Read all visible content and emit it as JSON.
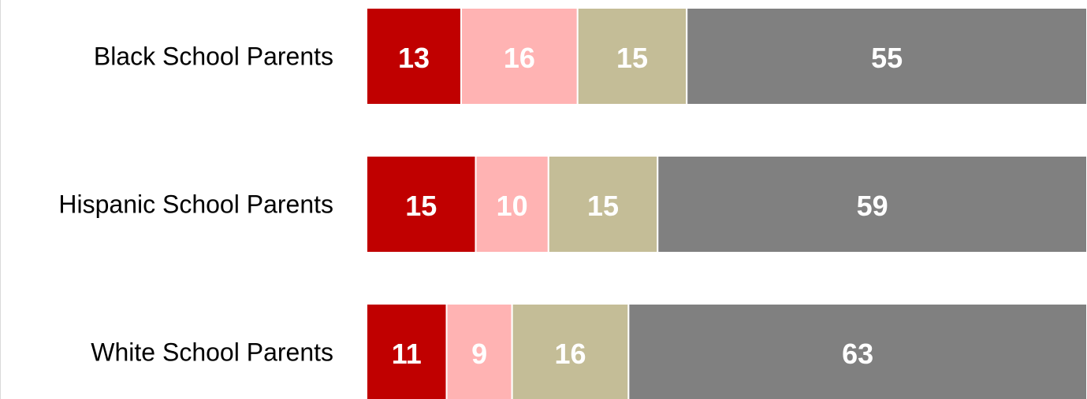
{
  "chart_data": {
    "type": "stacked-bar-horizontal",
    "categories": [
      "Black School Parents",
      "Hispanic School Parents",
      "White School Parents"
    ],
    "series": [
      {
        "color": "#c00000",
        "values": [
          13,
          15,
          11
        ]
      },
      {
        "color": "#ffb3b3",
        "values": [
          16,
          10,
          9
        ]
      },
      {
        "color": "#c4bd97",
        "values": [
          15,
          15,
          16
        ]
      },
      {
        "color": "#808080",
        "values": [
          55,
          59,
          63
        ]
      }
    ]
  }
}
